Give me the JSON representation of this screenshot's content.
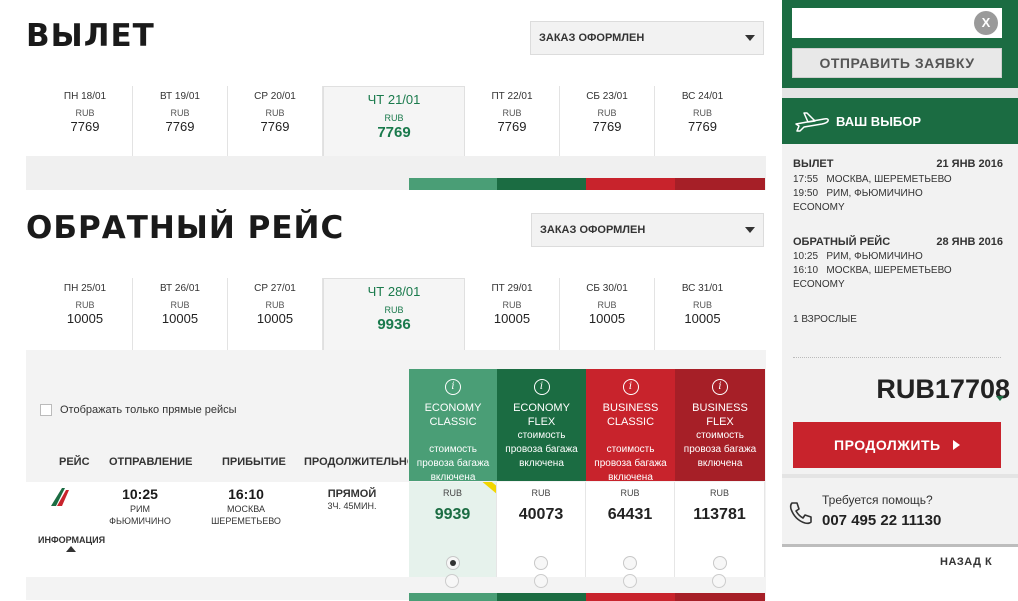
{
  "outbound": {
    "title": "ВЫЛЕТ",
    "status_select": "ЗАКАЗ ОФОРМЛЕН",
    "dates": [
      {
        "label": "ПН 18/01",
        "currency": "RUB",
        "price": "7769"
      },
      {
        "label": "ВТ 19/01",
        "currency": "RUB",
        "price": "7769"
      },
      {
        "label": "СР 20/01",
        "currency": "RUB",
        "price": "7769"
      },
      {
        "label": "ЧТ 21/01",
        "currency": "RUB",
        "price": "7769"
      },
      {
        "label": "ПТ 22/01",
        "currency": "RUB",
        "price": "7769"
      },
      {
        "label": "СБ 23/01",
        "currency": "RUB",
        "price": "7769"
      },
      {
        "label": "ВС 24/01",
        "currency": "RUB",
        "price": "7769"
      }
    ]
  },
  "return": {
    "title": "ОБРАТНЫЙ РЕЙС",
    "status_select": "ЗАКАЗ ОФОРМЛЕН",
    "dates": [
      {
        "label": "ПН 25/01",
        "currency": "RUB",
        "price": "10005"
      },
      {
        "label": "ВТ 26/01",
        "currency": "RUB",
        "price": "10005"
      },
      {
        "label": "СР 27/01",
        "currency": "RUB",
        "price": "10005"
      },
      {
        "label": "ЧТ 28/01",
        "currency": "RUB",
        "price": "9936"
      },
      {
        "label": "ПТ 29/01",
        "currency": "RUB",
        "price": "10005"
      },
      {
        "label": "СБ 30/01",
        "currency": "RUB",
        "price": "10005"
      },
      {
        "label": "ВС 31/01",
        "currency": "RUB",
        "price": "10005"
      }
    ]
  },
  "table": {
    "direct_only": "Отображать только прямые рейсы",
    "headers": {
      "flight": "РЕЙС",
      "departure": "ОТПРАВЛЕНИЕ",
      "arrival": "ПРИБЫТИЕ",
      "duration": "ПРОДОЛЖИТЕЛЬНО"
    },
    "fares": [
      {
        "name": "ECONOMY CLASSIC",
        "desc": "стоимость провоза багажа включена",
        "color": "#4a9e76"
      },
      {
        "name": "ECONOMY FLEX",
        "desc": "стоимость провоза багажа включена",
        "color": "#1b6c42"
      },
      {
        "name": "BUSINESS CLASSIC",
        "desc": "стоимость провоза багажа включена",
        "color": "#c8232c"
      },
      {
        "name": "BUSINESS FLEX",
        "desc": "стоимость провоза багажа включена",
        "color": "#a61f27"
      }
    ],
    "row": {
      "dep_time": "10:25",
      "dep_city": "РИМ",
      "dep_airport": "ФЬЮМИЧИНО",
      "arr_time": "16:10",
      "arr_city": "МОСКВА",
      "arr_airport": "ШЕРЕМЕТЬЕВО",
      "duration_type": "ПРЯМОЙ",
      "duration": "3Ч. 45МИН.",
      "info": "ИНФОРМАЦИЯ",
      "prices": [
        {
          "currency": "RUB",
          "price": "9939"
        },
        {
          "currency": "RUB",
          "price": "40073"
        },
        {
          "currency": "RUB",
          "price": "64431"
        },
        {
          "currency": "RUB",
          "price": "113781"
        }
      ]
    }
  },
  "sidebar": {
    "close": "X",
    "submit": "ОТПРАВИТЬ ЗАЯВКУ",
    "choice_title": "ВАШ ВЫБОР",
    "out_label": "ВЫЛЕТ",
    "out_date": "21 ЯНВ 2016",
    "out_l1": "17:55   МОСКВА, ШЕРЕМЕТЬЕВО",
    "out_l2": "19:50   РИМ, ФЬЮМИЧИНО",
    "out_class": "ECONOMY",
    "ret_label": "ОБРАТНЫЙ РЕЙС",
    "ret_date": "28 ЯНВ 2016",
    "ret_l1": "10:25   РИМ, ФЬЮМИЧИНО",
    "ret_l2": "16:10   МОСКВА, ШЕРЕМЕТЬЕВО",
    "ret_class": "ECONOMY",
    "pax": "1 ВЗРОСЛЫЕ",
    "total": "RUB17708",
    "continue": "ПРОДОЛЖИТЬ",
    "help_q": "Требуется помощь?",
    "phone": "007 495 22 11130",
    "back": "НАЗАД К"
  },
  "colors": {
    "green": "#1b6c42",
    "red": "#c8232c"
  }
}
